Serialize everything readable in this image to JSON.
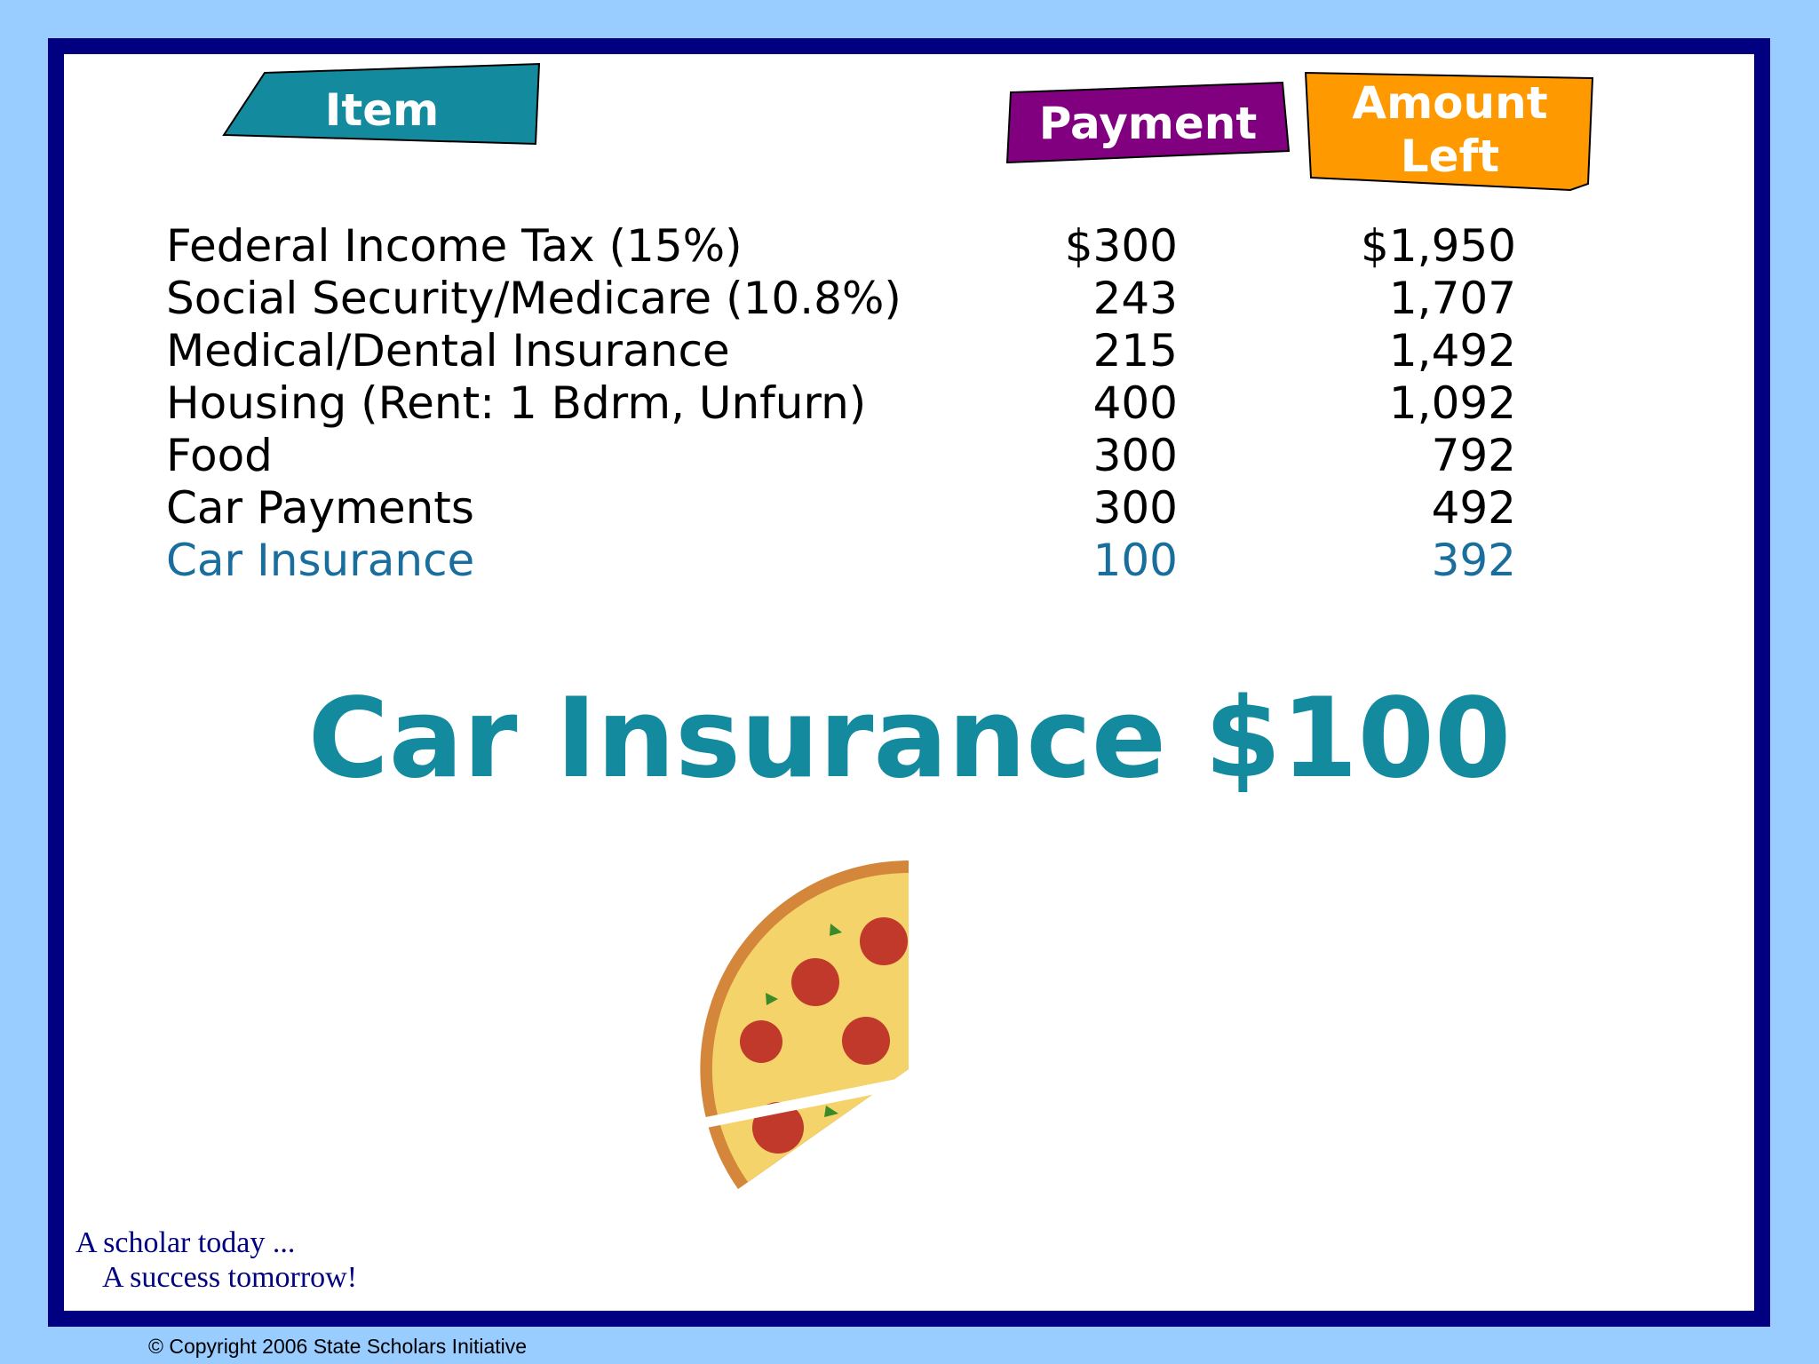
{
  "table": {
    "headers": [
      "Item",
      "Payment",
      "Amount Left"
    ],
    "rows": [
      [
        "Federal Income Tax (15%)",
        "$300",
        "$1,950"
      ],
      [
        "Social Security/Medicare (10.8%)",
        "243",
        "1,707"
      ],
      [
        "Medical/Dental Insurance",
        "215",
        "1,492"
      ],
      [
        "Housing (Rent: 1 Bdrm, Unfurn)",
        "400",
        "1,092"
      ],
      [
        "Food",
        "300",
        "792"
      ],
      [
        "Car Payments",
        "300",
        "492"
      ],
      [
        "Car Insurance",
        "100",
        "392"
      ]
    ]
  },
  "title": "Car Insurance $100",
  "tagline": [
    "A scholar today ...",
    "A success tomorrow!"
  ],
  "copyright": "© Copyright 2006 State Scholars Initiative"
}
